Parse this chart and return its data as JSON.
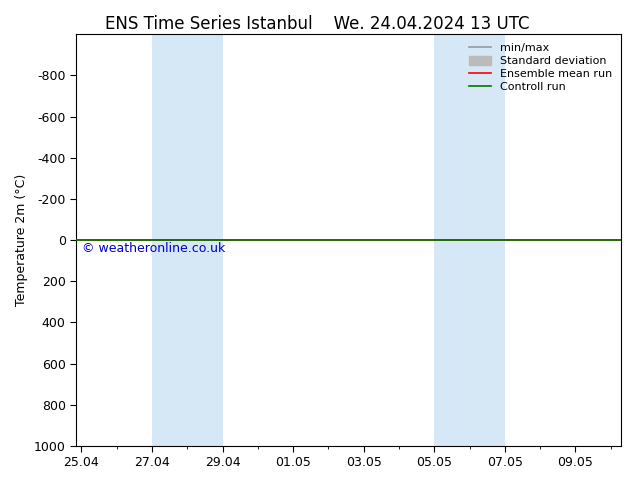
{
  "title_left": "ENS Time Series Istanbul",
  "title_right": "We. 24.04.2024 13 UTC",
  "ylabel": "Temperature 2m (°C)",
  "ylim_bottom": 1000,
  "ylim_top": -1000,
  "yticks": [
    -800,
    -600,
    -400,
    -200,
    0,
    200,
    400,
    600,
    800,
    1000
  ],
  "xtick_labels": [
    "25.04",
    "27.04",
    "29.04",
    "01.05",
    "03.05",
    "05.05",
    "07.05",
    "09.05"
  ],
  "xtick_positions": [
    0,
    2,
    4,
    6,
    8,
    10,
    12,
    14
  ],
  "xlim": [
    -0.15,
    15.3
  ],
  "shaded_bands": [
    {
      "x_start": 2,
      "x_end": 4
    },
    {
      "x_start": 10,
      "x_end": 12
    }
  ],
  "shade_color": "#d6e8f5",
  "control_run_color": "#007700",
  "ensemble_mean_color": "#ff0000",
  "bg_color": "#ffffff",
  "plot_bg_color": "#ffffff",
  "border_color": "#000000",
  "watermark": "© weatheronline.co.uk",
  "watermark_color": "#0000cc",
  "legend_items": [
    {
      "label": "min/max",
      "color": "#999999",
      "lw": 1.2
    },
    {
      "label": "Standard deviation",
      "color": "#bbbbbb",
      "lw": 5
    },
    {
      "label": "Ensemble mean run",
      "color": "#ff0000",
      "lw": 1.2
    },
    {
      "label": "Controll run",
      "color": "#007700",
      "lw": 1.2
    }
  ],
  "title_fontsize": 12,
  "tick_fontsize": 9,
  "ylabel_fontsize": 9,
  "watermark_fontsize": 9,
  "legend_fontsize": 8
}
